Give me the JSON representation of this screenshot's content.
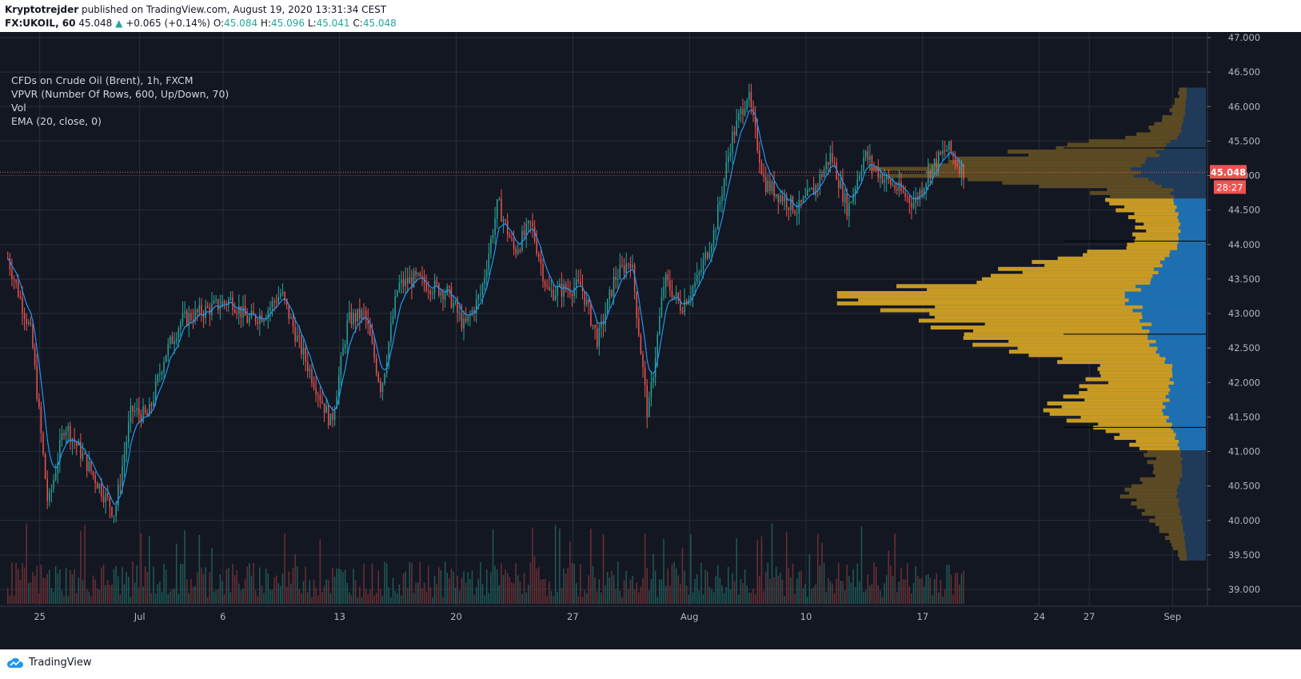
{
  "header": {
    "author": "Kryptotrejder",
    "published_text": "published on TradingView.com, August 19, 2020 13:31:34 CEST",
    "symbol": "FX:UKOIL, 60",
    "last": "45.048",
    "change": "+0.065 (+0.14%)",
    "open_label": "O:",
    "open": "45.084",
    "high_label": "H:",
    "high": "45.096",
    "low_label": "L:",
    "low": "45.041",
    "close_label": "C:",
    "close": "45.048"
  },
  "legend": {
    "title": "CFDs on Crude Oil (Brent), 1h, FXCM",
    "indicator1": "VPVR (Number Of Rows, 600, Up/Down, 70)",
    "indicator2": "Vol",
    "indicator3": "EMA (20, close, 0)"
  },
  "price_badge": {
    "price": "45.048",
    "countdown": "28:27"
  },
  "footer": {
    "brand": "TradingView"
  },
  "colors": {
    "background": "#131722",
    "up": "#26a69a",
    "down": "#ef5350",
    "ema": "#2196f3",
    "vp_value_area": "#1e6fb0",
    "vp_outside": "#203a5a",
    "vp_volume": "#c99a22",
    "vp_volume_dim": "#5c4a22",
    "price_line": "#ef5350"
  },
  "chart_data": {
    "type": "candlestick",
    "symbol": "FX:UKOIL",
    "interval": "1h",
    "y_axis": {
      "min": 39.0,
      "max": 47.0,
      "ticks": [
        "39.000",
        "39.500",
        "40.000",
        "40.500",
        "41.000",
        "41.500",
        "42.000",
        "42.500",
        "43.000",
        "43.500",
        "44.000",
        "44.500",
        "45.000",
        "45.500",
        "46.000",
        "46.500",
        "47.000"
      ]
    },
    "x_axis_labels": [
      "25",
      "Jul",
      "6",
      "13",
      "20",
      "27",
      "Aug",
      "10",
      "17",
      "24",
      "27",
      "Sep"
    ],
    "last_price": 45.048,
    "price_path_keypoints": [
      {
        "t": "Jun 23",
        "p": 43.8
      },
      {
        "t": "Jun 24",
        "p": 42.7
      },
      {
        "t": "Jun 25",
        "p": 40.2
      },
      {
        "t": "Jun 26",
        "p": 41.4
      },
      {
        "t": "Jun 29",
        "p": 40.1
      },
      {
        "t": "Jun 30",
        "p": 41.6
      },
      {
        "t": "Jul 1",
        "p": 41.5
      },
      {
        "t": "Jul 2",
        "p": 42.4
      },
      {
        "t": "Jul 3",
        "p": 42.9
      },
      {
        "t": "Jul 6",
        "p": 43.2
      },
      {
        "t": "Jul 7",
        "p": 42.9
      },
      {
        "t": "Jul 8",
        "p": 43.0
      },
      {
        "t": "Jul 9",
        "p": 43.3
      },
      {
        "t": "Jul 10",
        "p": 42.6
      },
      {
        "t": "Jul 12",
        "p": 41.4
      },
      {
        "t": "Jul 13",
        "p": 42.9
      },
      {
        "t": "Jul 14",
        "p": 43.0
      },
      {
        "t": "Jul 15",
        "p": 41.9
      },
      {
        "t": "Jul 16",
        "p": 43.4
      },
      {
        "t": "Jul 17",
        "p": 43.5
      },
      {
        "t": "Jul 19",
        "p": 43.3
      },
      {
        "t": "Jul 20",
        "p": 42.8
      },
      {
        "t": "Jul 21",
        "p": 43.3
      },
      {
        "t": "Jul 22",
        "p": 44.6
      },
      {
        "t": "Jul 23",
        "p": 43.9
      },
      {
        "t": "Jul 24",
        "p": 44.3
      },
      {
        "t": "Jul 25",
        "p": 43.3
      },
      {
        "t": "Jul 27",
        "p": 43.4
      },
      {
        "t": "Jul 28",
        "p": 42.6
      },
      {
        "t": "Jul 29",
        "p": 43.5
      },
      {
        "t": "Jul 30",
        "p": 43.8
      },
      {
        "t": "Jul 31",
        "p": 41.5
      },
      {
        "t": "Aug 1",
        "p": 43.5
      },
      {
        "t": "Aug 2",
        "p": 43.1
      },
      {
        "t": "Aug 3",
        "p": 43.5
      },
      {
        "t": "Aug 4",
        "p": 44.2
      },
      {
        "t": "Aug 5",
        "p": 45.5
      },
      {
        "t": "Aug 6",
        "p": 46.2
      },
      {
        "t": "Aug 7",
        "p": 44.9
      },
      {
        "t": "Aug 9",
        "p": 44.5
      },
      {
        "t": "Aug 10",
        "p": 44.8
      },
      {
        "t": "Aug 11",
        "p": 45.3
      },
      {
        "t": "Aug 12",
        "p": 44.5
      },
      {
        "t": "Aug 13",
        "p": 45.3
      },
      {
        "t": "Aug 14",
        "p": 45.0
      },
      {
        "t": "Aug 16",
        "p": 44.6
      },
      {
        "t": "Aug 17",
        "p": 45.1
      },
      {
        "t": "Aug 18",
        "p": 45.4
      },
      {
        "t": "Aug 19",
        "p": 45.048
      }
    ],
    "volume_profile": {
      "value_area": [
        41.0,
        44.65
      ],
      "point_of_control": 43.25,
      "levels": [
        {
          "p": 39.5,
          "v": 2
        },
        {
          "p": 39.8,
          "v": 5
        },
        {
          "p": 40.1,
          "v": 9
        },
        {
          "p": 40.4,
          "v": 14
        },
        {
          "p": 40.7,
          "v": 7
        },
        {
          "p": 41.0,
          "v": 9
        },
        {
          "p": 41.3,
          "v": 17
        },
        {
          "p": 41.6,
          "v": 30
        },
        {
          "p": 41.9,
          "v": 22
        },
        {
          "p": 42.2,
          "v": 18
        },
        {
          "p": 42.5,
          "v": 40
        },
        {
          "p": 42.8,
          "v": 50
        },
        {
          "p": 43.0,
          "v": 56
        },
        {
          "p": 43.25,
          "v": 78
        },
        {
          "p": 43.5,
          "v": 42
        },
        {
          "p": 43.7,
          "v": 35
        },
        {
          "p": 44.0,
          "v": 12
        },
        {
          "p": 44.3,
          "v": 10
        },
        {
          "p": 44.6,
          "v": 16
        },
        {
          "p": 44.8,
          "v": 20
        },
        {
          "p": 45.05,
          "v": 68
        },
        {
          "p": 45.3,
          "v": 40
        },
        {
          "p": 45.6,
          "v": 10
        },
        {
          "p": 45.9,
          "v": 4
        },
        {
          "p": 46.2,
          "v": 2
        }
      ]
    }
  }
}
